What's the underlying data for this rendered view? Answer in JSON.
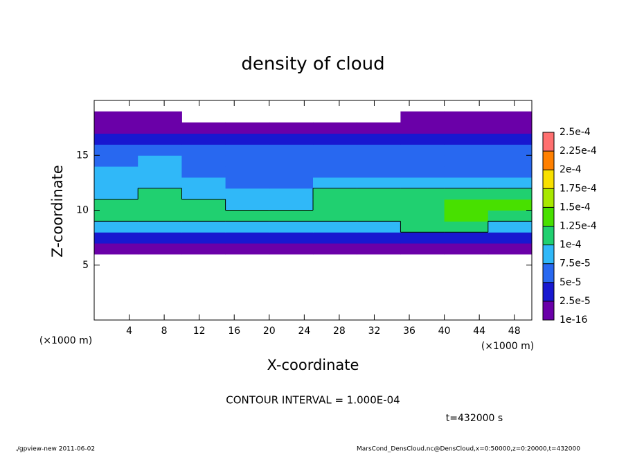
{
  "chart_data": {
    "type": "heatmap",
    "title": "density of cloud",
    "x_label": "X-coordinate",
    "y_label": "Z-coordinate",
    "x_unit": "(×1000 m)",
    "y_unit": "(×1000 m)",
    "xlim": [
      0,
      50
    ],
    "ylim": [
      0,
      20
    ],
    "xticks": [
      4,
      8,
      12,
      16,
      20,
      24,
      28,
      32,
      36,
      40,
      44,
      48
    ],
    "yticks": [
      5,
      10,
      15
    ],
    "x": [
      2.5,
      7.5,
      12.5,
      17.5,
      22.5,
      27.5,
      32.5,
      37.5,
      42.5,
      47.5
    ],
    "z": [
      5.5,
      6.5,
      7.5,
      8.5,
      9.5,
      10.5,
      11.5,
      12.5,
      13.5,
      14.5,
      15.5,
      16.5,
      17.5,
      18.5
    ],
    "values": [
      [
        null,
        null,
        null,
        null,
        null,
        null,
        null,
        null,
        null,
        null
      ],
      [
        1e-10,
        1e-10,
        1e-10,
        1e-10,
        1e-10,
        1e-10,
        1e-10,
        1e-10,
        1e-10,
        1e-10
      ],
      [
        4e-05,
        4e-05,
        4e-05,
        4e-05,
        4e-05,
        4e-05,
        4e-05,
        4e-05,
        4e-05,
        4e-05
      ],
      [
        9e-05,
        9.5e-05,
        9e-05,
        9.5e-05,
        9.5e-05,
        9e-05,
        9.5e-05,
        0.000105,
        0.0001,
        9.5e-05
      ],
      [
        0.00011,
        0.000105,
        0.000105,
        0.00011,
        0.00011,
        0.000105,
        0.00011,
        0.00012,
        0.00013,
        0.00012
      ],
      [
        0.000105,
        0.000105,
        0.0001,
        9.5e-05,
        9.5e-05,
        0.00011,
        0.000115,
        0.00012,
        0.00014,
        0.000125
      ],
      [
        9.5e-05,
        0.0001,
        9e-05,
        8e-05,
        8e-05,
        0.0001,
        0.000105,
        0.000105,
        0.00011,
        0.000105
      ],
      [
        8.5e-05,
        8.5e-05,
        8e-05,
        6e-05,
        6e-05,
        7.5e-05,
        8e-05,
        8.5e-05,
        8.5e-05,
        8e-05
      ],
      [
        8e-05,
        7.5e-05,
        7e-05,
        5.5e-05,
        5.5e-05,
        6.5e-05,
        6.5e-05,
        7e-05,
        7e-05,
        7e-05
      ],
      [
        7e-05,
        7.5e-05,
        6.5e-05,
        6e-05,
        6.5e-05,
        6e-05,
        6e-05,
        6e-05,
        6e-05,
        6e-05
      ],
      [
        5.5e-05,
        6e-05,
        6e-05,
        6.5e-05,
        7e-05,
        6e-05,
        5.5e-05,
        5.5e-05,
        5.5e-05,
        5.5e-05
      ],
      [
        3e-05,
        3e-05,
        3e-05,
        3e-05,
        3e-05,
        3e-05,
        3e-05,
        3e-05,
        3e-05,
        3e-05
      ],
      [
        1e-10,
        1e-10,
        1e-10,
        1e-10,
        1e-10,
        1e-10,
        1e-10,
        1e-10,
        1e-10,
        1e-10
      ],
      [
        1e-10,
        1e-10,
        null,
        null,
        null,
        null,
        null,
        1e-10,
        1e-10,
        1e-10
      ]
    ],
    "levels": [
      1e-16,
      {
        "value": 2.5e-05,
        "label": "2.5e-5"
      },
      {
        "value": 5e-05,
        "label": "5e-5"
      },
      {
        "value": 7.5e-05,
        "label": "7.5e-5"
      },
      {
        "value": 0.0001,
        "label": "1e-4"
      },
      {
        "value": 0.000125,
        "label": "1.25e-4"
      },
      {
        "value": 0.00015,
        "label": "1.5e-4"
      },
      {
        "value": 0.000175,
        "label": "1.75e-4"
      },
      {
        "value": 0.0002,
        "label": "2e-4"
      },
      {
        "value": 0.000225,
        "label": "2.25e-4"
      },
      {
        "value": 0.00025,
        "label": "2.5e-4"
      }
    ],
    "colors": [
      "#6a00a8",
      "#1818d0",
      "#2868f0",
      "#30b8f8",
      "#20d070",
      "#48e000",
      "#a8e800",
      "#f8e000",
      "#ff8000",
      "#ff7070"
    ],
    "contour": {
      "value": 0.0001,
      "label": "CONTOUR INTERVAL = 1.000E-04"
    },
    "time_label": "t=432000 s",
    "footer_left": "./gpview-new  2011-06-02",
    "footer_right": "MarsCond_DensCloud.nc@DensCloud,x=0:50000,z=0:20000,t=432000"
  }
}
